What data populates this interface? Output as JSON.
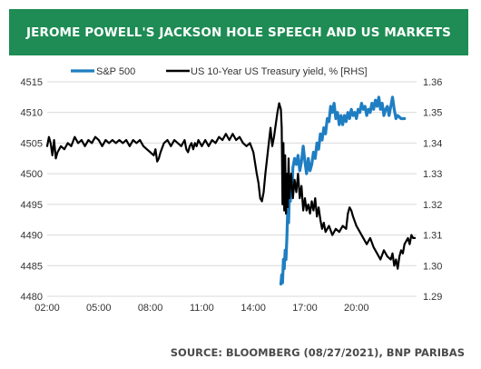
{
  "header": {
    "title": "JEROME POWELL'S JACKSON HOLE SPEECH AND US MARKETS"
  },
  "footer": {
    "source": "SOURCE: BLOOMBERG (08/27/2021), BNP PARIBAS"
  },
  "colors": {
    "banner": "#1e8c54",
    "sp500": "#1f7ec2",
    "treasury": "#000000",
    "grid": "#d9d9d9"
  },
  "chart_data": {
    "type": "line",
    "title": "JEROME POWELL'S JACKSON HOLE SPEECH AND US MARKETS",
    "x_unit": "hours (time of day)",
    "xlim": [
      2,
      23.5
    ],
    "x_ticks": [
      2,
      5,
      8,
      11,
      14,
      17,
      20
    ],
    "x_tick_labels": [
      "02:00",
      "05:00",
      "08:00",
      "11:00",
      "14:00",
      "17:00",
      "20:00"
    ],
    "ylim_left": [
      4480,
      4515
    ],
    "y_ticks_left": [
      "4515",
      "4510",
      "4505",
      "4500",
      "4495",
      "4490",
      "4485",
      "4480"
    ],
    "ylim_right": [
      1.29,
      1.36
    ],
    "y_ticks_right": [
      "1.36",
      "1.35",
      "1.34",
      "1.33",
      "1.32",
      "1.31",
      "1.30",
      "1.29"
    ],
    "grid": "horizontal",
    "legend_position": "top",
    "series": [
      {
        "name": "S&P 500",
        "axis": "left",
        "color": "#1f7ec2",
        "points": [
          [
            15.6,
            4482.0
          ],
          [
            15.65,
            4483.5
          ],
          [
            15.7,
            4482.2
          ],
          [
            15.75,
            4486.0
          ],
          [
            15.8,
            4484.5
          ],
          [
            15.85,
            4487.5
          ],
          [
            15.9,
            4486.0
          ],
          [
            15.95,
            4489.5
          ],
          [
            16.0,
            4494.0
          ],
          [
            16.05,
            4492.0
          ],
          [
            16.1,
            4497.0
          ],
          [
            16.15,
            4495.5
          ],
          [
            16.2,
            4499.0
          ],
          [
            16.25,
            4497.5
          ],
          [
            16.3,
            4501.0
          ],
          [
            16.4,
            4502.5
          ],
          [
            16.5,
            4501.5
          ],
          [
            16.6,
            4503.0
          ],
          [
            16.7,
            4500.5
          ],
          [
            16.8,
            4502.0
          ],
          [
            16.9,
            4504.5
          ],
          [
            17.0,
            4502.0
          ],
          [
            17.1,
            4500.0
          ],
          [
            17.2,
            4502.5
          ],
          [
            17.3,
            4500.5
          ],
          [
            17.4,
            4501.5
          ],
          [
            17.5,
            4503.5
          ],
          [
            17.6,
            4502.5
          ],
          [
            17.7,
            4505.0
          ],
          [
            17.8,
            4504.0
          ],
          [
            17.9,
            4506.5
          ],
          [
            18.0,
            4505.5
          ],
          [
            18.1,
            4507.5
          ],
          [
            18.2,
            4506.5
          ],
          [
            18.3,
            4509.0
          ],
          [
            18.4,
            4508.5
          ],
          [
            18.5,
            4511.0
          ],
          [
            18.6,
            4510.0
          ],
          [
            18.7,
            4511.5
          ],
          [
            18.8,
            4509.0
          ],
          [
            18.9,
            4510.0
          ],
          [
            19.0,
            4508.0
          ],
          [
            19.1,
            4509.5
          ],
          [
            19.2,
            4508.0
          ],
          [
            19.3,
            4509.5
          ],
          [
            19.4,
            4508.5
          ],
          [
            19.5,
            4510.0
          ],
          [
            19.6,
            4509.0
          ],
          [
            19.7,
            4510.5
          ],
          [
            19.8,
            4509.5
          ],
          [
            19.9,
            4510.0
          ],
          [
            20.0,
            4509.0
          ],
          [
            20.1,
            4510.5
          ],
          [
            20.2,
            4510.0
          ],
          [
            20.3,
            4511.5
          ],
          [
            20.4,
            4510.5
          ],
          [
            20.5,
            4511.0
          ],
          [
            20.6,
            4509.5
          ],
          [
            20.7,
            4510.5
          ],
          [
            20.8,
            4510.0
          ],
          [
            20.9,
            4511.5
          ],
          [
            21.0,
            4510.5
          ],
          [
            21.1,
            4512.0
          ],
          [
            21.2,
            4511.0
          ],
          [
            21.3,
            4512.5
          ],
          [
            21.4,
            4510.5
          ],
          [
            21.5,
            4511.5
          ],
          [
            21.6,
            4509.5
          ],
          [
            21.7,
            4510.5
          ],
          [
            21.8,
            4511.0
          ],
          [
            21.9,
            4509.5
          ],
          [
            22.0,
            4511.0
          ],
          [
            22.1,
            4512.5
          ],
          [
            22.2,
            4510.5
          ],
          [
            22.3,
            4509.0
          ],
          [
            22.4,
            4509.5
          ],
          [
            22.6,
            4509.0
          ],
          [
            22.8,
            4509.0
          ]
        ]
      },
      {
        "name": "US 10-Year US Treasury yield, % [RHS]",
        "axis": "right",
        "color": "#000000",
        "points": [
          [
            2.0,
            1.339
          ],
          [
            2.1,
            1.342
          ],
          [
            2.2,
            1.34
          ],
          [
            2.3,
            1.336
          ],
          [
            2.4,
            1.341
          ],
          [
            2.5,
            1.335
          ],
          [
            2.6,
            1.337
          ],
          [
            2.8,
            1.339
          ],
          [
            3.0,
            1.338
          ],
          [
            3.2,
            1.34
          ],
          [
            3.4,
            1.339
          ],
          [
            3.6,
            1.342
          ],
          [
            3.8,
            1.34
          ],
          [
            4.0,
            1.341
          ],
          [
            4.2,
            1.339
          ],
          [
            4.4,
            1.341
          ],
          [
            4.6,
            1.34
          ],
          [
            4.8,
            1.342
          ],
          [
            5.0,
            1.341
          ],
          [
            5.2,
            1.339
          ],
          [
            5.4,
            1.341
          ],
          [
            5.6,
            1.34
          ],
          [
            5.8,
            1.341
          ],
          [
            6.0,
            1.34
          ],
          [
            6.2,
            1.341
          ],
          [
            6.4,
            1.34
          ],
          [
            6.6,
            1.341
          ],
          [
            6.8,
            1.339
          ],
          [
            7.0,
            1.341
          ],
          [
            7.2,
            1.34
          ],
          [
            7.4,
            1.341
          ],
          [
            7.6,
            1.339
          ],
          [
            7.8,
            1.338
          ],
          [
            8.0,
            1.337
          ],
          [
            8.2,
            1.336
          ],
          [
            8.3,
            1.338
          ],
          [
            8.4,
            1.334
          ],
          [
            8.5,
            1.335
          ],
          [
            8.6,
            1.337
          ],
          [
            8.8,
            1.34
          ],
          [
            9.0,
            1.341
          ],
          [
            9.2,
            1.339
          ],
          [
            9.4,
            1.341
          ],
          [
            9.6,
            1.34
          ],
          [
            9.8,
            1.339
          ],
          [
            10.0,
            1.341
          ],
          [
            10.1,
            1.338
          ],
          [
            10.2,
            1.337
          ],
          [
            10.3,
            1.339
          ],
          [
            10.4,
            1.34
          ],
          [
            10.5,
            1.338
          ],
          [
            10.6,
            1.34
          ],
          [
            10.7,
            1.339
          ],
          [
            10.8,
            1.341
          ],
          [
            11.0,
            1.339
          ],
          [
            11.2,
            1.341
          ],
          [
            11.4,
            1.339
          ],
          [
            11.6,
            1.341
          ],
          [
            11.8,
            1.34
          ],
          [
            12.0,
            1.342
          ],
          [
            12.2,
            1.341
          ],
          [
            12.4,
            1.343
          ],
          [
            12.6,
            1.341
          ],
          [
            12.8,
            1.343
          ],
          [
            13.0,
            1.341
          ],
          [
            13.2,
            1.342
          ],
          [
            13.4,
            1.34
          ],
          [
            13.6,
            1.339
          ],
          [
            13.8,
            1.34
          ],
          [
            14.0,
            1.337
          ],
          [
            14.2,
            1.33
          ],
          [
            14.3,
            1.327
          ],
          [
            14.4,
            1.322
          ],
          [
            14.5,
            1.321
          ],
          [
            14.6,
            1.324
          ],
          [
            14.7,
            1.33
          ],
          [
            14.8,
            1.335
          ],
          [
            14.9,
            1.34
          ],
          [
            15.0,
            1.345
          ],
          [
            15.1,
            1.339
          ],
          [
            15.2,
            1.342
          ],
          [
            15.3,
            1.346
          ],
          [
            15.4,
            1.35
          ],
          [
            15.5,
            1.353
          ],
          [
            15.6,
            1.351
          ],
          [
            15.65,
            1.345
          ],
          [
            15.7,
            1.32
          ],
          [
            15.75,
            1.34
          ],
          [
            15.8,
            1.318
          ],
          [
            15.85,
            1.336
          ],
          [
            15.9,
            1.317
          ],
          [
            15.95,
            1.33
          ],
          [
            16.0,
            1.319
          ],
          [
            16.05,
            1.335
          ],
          [
            16.1,
            1.322
          ],
          [
            16.2,
            1.33
          ],
          [
            16.3,
            1.322
          ],
          [
            16.4,
            1.328
          ],
          [
            16.5,
            1.324
          ],
          [
            16.6,
            1.33
          ],
          [
            16.7,
            1.322
          ],
          [
            16.8,
            1.326
          ],
          [
            16.9,
            1.318
          ],
          [
            17.0,
            1.322
          ],
          [
            17.1,
            1.318
          ],
          [
            17.2,
            1.32
          ],
          [
            17.3,
            1.317
          ],
          [
            17.4,
            1.321
          ],
          [
            17.5,
            1.318
          ],
          [
            17.6,
            1.322
          ],
          [
            17.7,
            1.316
          ],
          [
            17.8,
            1.319
          ],
          [
            17.9,
            1.315
          ],
          [
            18.0,
            1.312
          ],
          [
            18.1,
            1.314
          ],
          [
            18.2,
            1.311
          ],
          [
            18.4,
            1.313
          ],
          [
            18.6,
            1.31
          ],
          [
            18.8,
            1.312
          ],
          [
            19.0,
            1.311
          ],
          [
            19.2,
            1.313
          ],
          [
            19.4,
            1.312
          ],
          [
            19.5,
            1.317
          ],
          [
            19.6,
            1.319
          ],
          [
            19.7,
            1.318
          ],
          [
            19.8,
            1.316
          ],
          [
            20.0,
            1.313
          ],
          [
            20.2,
            1.311
          ],
          [
            20.4,
            1.309
          ],
          [
            20.6,
            1.307
          ],
          [
            20.8,
            1.309
          ],
          [
            21.0,
            1.306
          ],
          [
            21.2,
            1.304
          ],
          [
            21.4,
            1.302
          ],
          [
            21.6,
            1.305
          ],
          [
            21.8,
            1.303
          ],
          [
            22.0,
            1.302
          ],
          [
            22.1,
            1.304
          ],
          [
            22.2,
            1.3
          ],
          [
            22.3,
            1.302
          ],
          [
            22.4,
            1.299
          ],
          [
            22.5,
            1.303
          ],
          [
            22.6,
            1.305
          ],
          [
            22.7,
            1.304
          ],
          [
            22.8,
            1.307
          ],
          [
            22.9,
            1.308
          ],
          [
            23.0,
            1.309
          ],
          [
            23.1,
            1.307
          ],
          [
            23.2,
            1.31
          ],
          [
            23.3,
            1.309
          ],
          [
            23.4,
            1.309
          ]
        ]
      }
    ]
  }
}
